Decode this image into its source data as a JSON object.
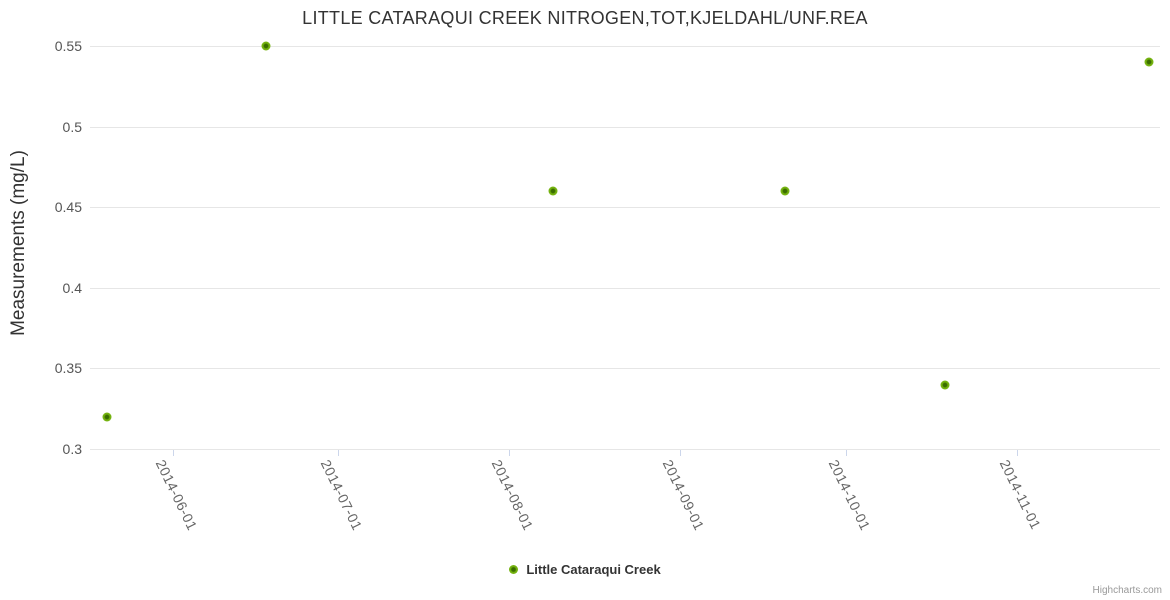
{
  "header": {
    "title": "LITTLE CATARAQUI CREEK NITROGEN,TOT,KJELDAHL/UNF.REA"
  },
  "legend": {
    "items": [
      {
        "label": "Little Cataraqui Creek"
      }
    ]
  },
  "credits": {
    "label": "Highcharts.com"
  },
  "colors": {
    "series": "#72b00c",
    "series_light": "#7fbb22",
    "series_center": "#3a6d00",
    "grid": "#e6e6e6",
    "axis_line": "#ccd6eb",
    "title": "#333333",
    "y_label": "#555555",
    "x_label": "#666666",
    "credits": "#999999"
  },
  "chart_data": {
    "type": "scatter",
    "title": "LITTLE CATARAQUI CREEK NITROGEN,TOT,KJELDAHL/UNF.REA",
    "xlabel": "",
    "ylabel": "Measurements (mg/L)",
    "x_type": "datetime",
    "x_range": [
      "2014-05-17",
      "2014-11-27"
    ],
    "ylim": [
      0.3,
      0.55
    ],
    "grid": "horizontal-only",
    "legend_position": "bottom-center",
    "y_ticks": [
      {
        "value": 0.3,
        "label": "0.3"
      },
      {
        "value": 0.35,
        "label": "0.35"
      },
      {
        "value": 0.4,
        "label": "0.4"
      },
      {
        "value": 0.45,
        "label": "0.45"
      },
      {
        "value": 0.5,
        "label": "0.5"
      },
      {
        "value": 0.55,
        "label": "0.55"
      }
    ],
    "x_ticks": [
      {
        "date": "2014-06-01",
        "label": "2014-06-01"
      },
      {
        "date": "2014-07-01",
        "label": "2014-07-01"
      },
      {
        "date": "2014-08-01",
        "label": "2014-08-01"
      },
      {
        "date": "2014-09-01",
        "label": "2014-09-01"
      },
      {
        "date": "2014-10-01",
        "label": "2014-10-01"
      },
      {
        "date": "2014-11-01",
        "label": "2014-11-01"
      }
    ],
    "series": [
      {
        "name": "Little Cataraqui Creek",
        "color": "#72b00c",
        "points": [
          {
            "date": "2014-05-20",
            "value": 0.32
          },
          {
            "date": "2014-06-18",
            "value": 0.55
          },
          {
            "date": "2014-08-09",
            "value": 0.46
          },
          {
            "date": "2014-09-20",
            "value": 0.46
          },
          {
            "date": "2014-10-19",
            "value": 0.34
          },
          {
            "date": "2014-11-25",
            "value": 0.54
          }
        ]
      }
    ]
  }
}
